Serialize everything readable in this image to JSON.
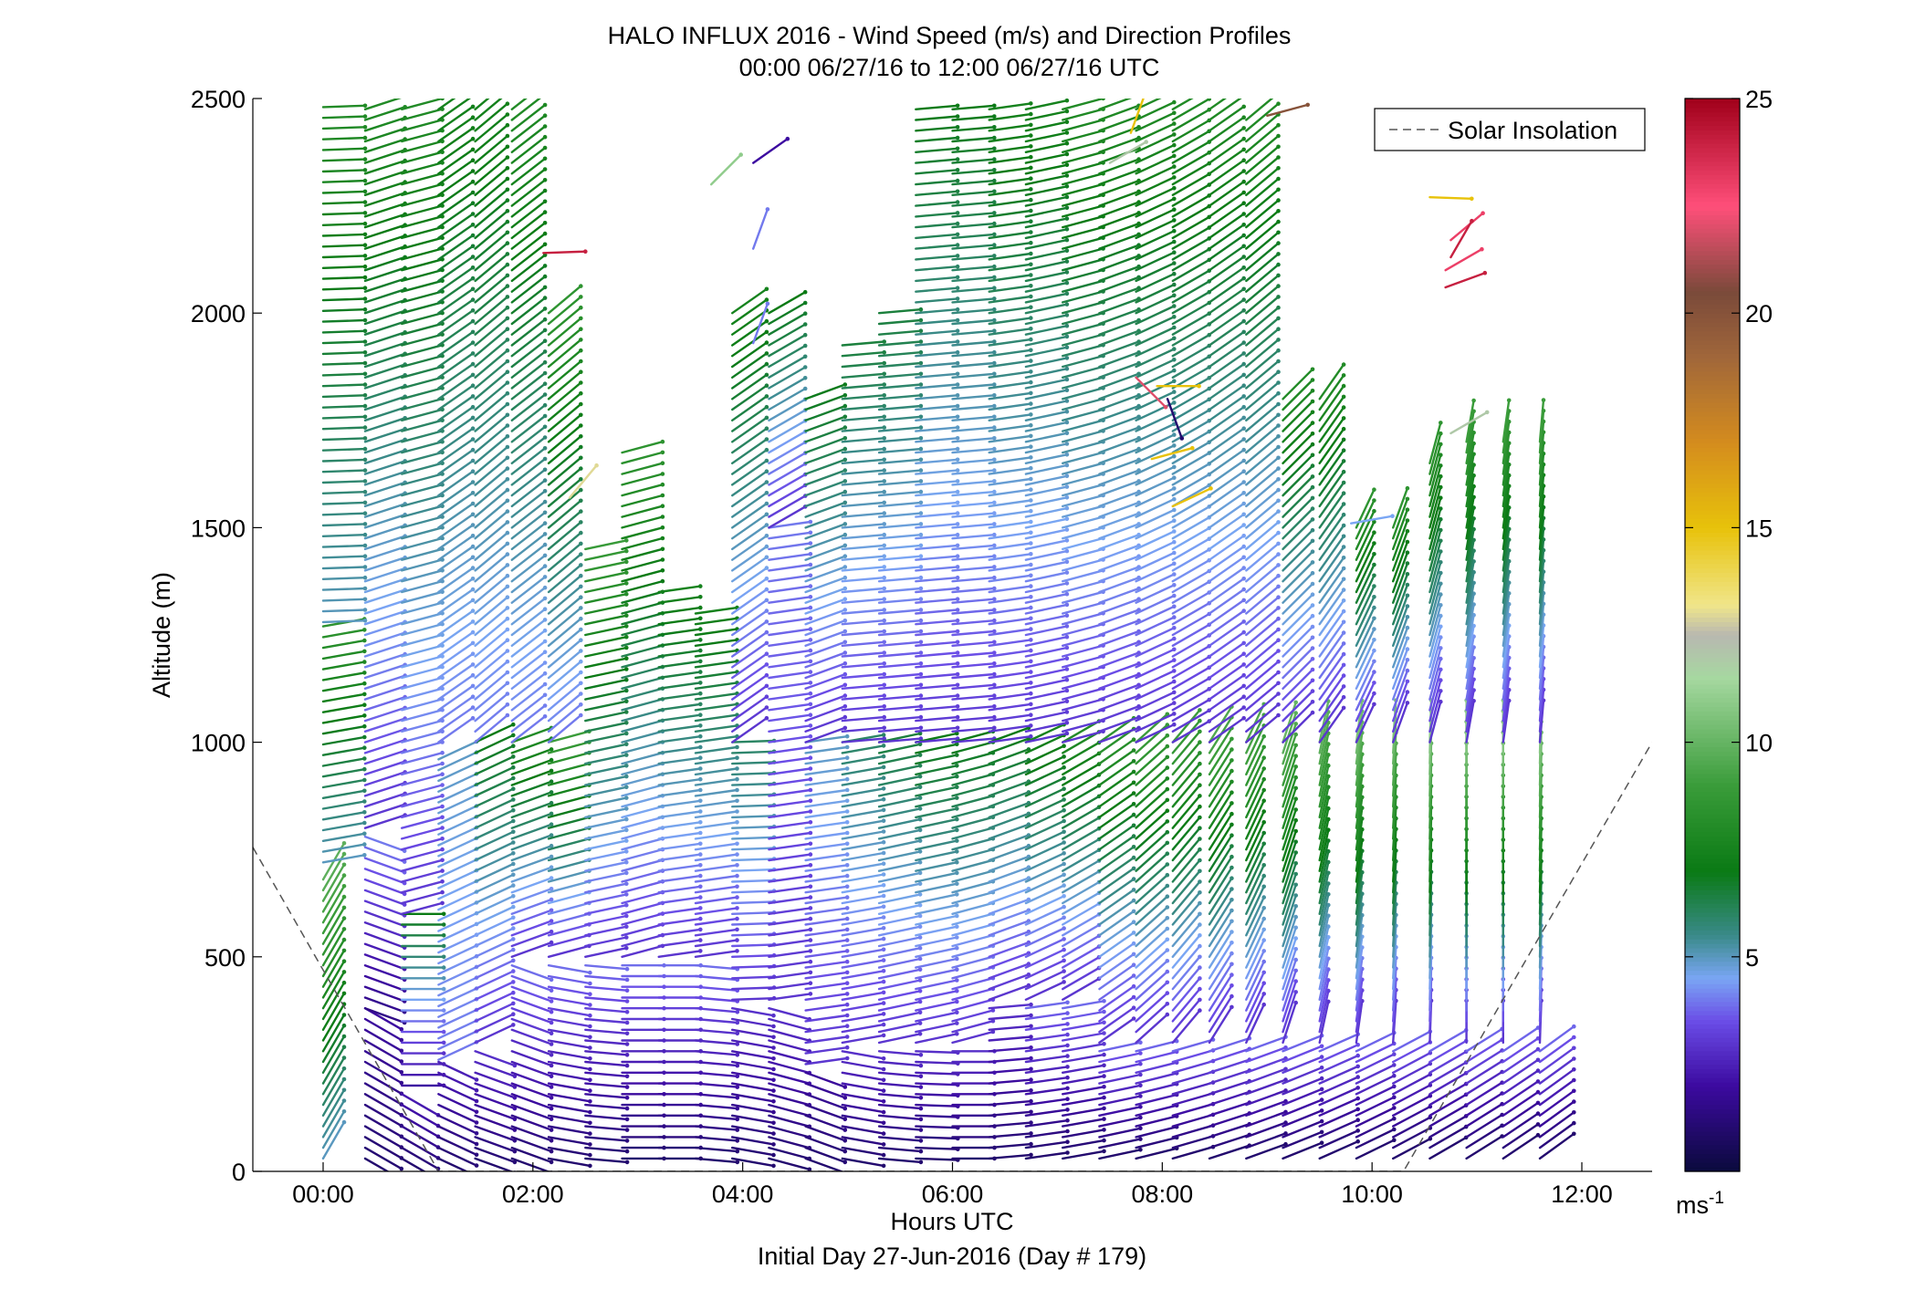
{
  "chart_data": {
    "type": "quiver",
    "title": "HALO INFLUX 2016 - Wind Speed (m/s) and Direction Profiles",
    "subtitle": "00:00 06/27/16 to 12:00 06/27/16  UTC",
    "xlabel": "Hours UTC",
    "xlabel2": "Initial Day 27-Jun-2016 (Day # 179)",
    "ylabel": "Altitude (m)",
    "xlim": [
      -0.67,
      12.67
    ],
    "ylim": [
      0,
      2500
    ],
    "x_ticks": [
      {
        "value": 0,
        "label": "00:00"
      },
      {
        "value": 2,
        "label": "02:00"
      },
      {
        "value": 4,
        "label": "04:00"
      },
      {
        "value": 6,
        "label": "06:00"
      },
      {
        "value": 8,
        "label": "08:00"
      },
      {
        "value": 10,
        "label": "10:00"
      },
      {
        "value": 12,
        "label": "12:00"
      }
    ],
    "y_ticks": [
      {
        "value": 0,
        "label": "0"
      },
      {
        "value": 500,
        "label": "500"
      },
      {
        "value": 1000,
        "label": "1000"
      },
      {
        "value": 1500,
        "label": "1500"
      },
      {
        "value": 2000,
        "label": "2000"
      },
      {
        "value": 2500,
        "label": "2500"
      }
    ],
    "legend": {
      "label": "Solar Insolation",
      "placement": "top-right"
    },
    "colorbar": {
      "min": 0,
      "max": 25,
      "ticks": [
        {
          "value": 5,
          "label": "5"
        },
        {
          "value": 10,
          "label": "10"
        },
        {
          "value": 15,
          "label": "15"
        },
        {
          "value": 20,
          "label": "20"
        },
        {
          "value": 25,
          "label": "25"
        }
      ],
      "unit_label": "ms",
      "unit_exponent": "-1",
      "stops": [
        {
          "v": 0,
          "color": "#0a0a3c"
        },
        {
          "v": 2,
          "color": "#3c0aa0"
        },
        {
          "v": 3.5,
          "color": "#6a4ce6"
        },
        {
          "v": 4.5,
          "color": "#7aa6f4"
        },
        {
          "v": 5.5,
          "color": "#3a8a8a"
        },
        {
          "v": 7,
          "color": "#0a7a14"
        },
        {
          "v": 9,
          "color": "#3a9c3a"
        },
        {
          "v": 11.5,
          "color": "#a6d8a0"
        },
        {
          "v": 12.5,
          "color": "#b8b8b0"
        },
        {
          "v": 13.2,
          "color": "#f0e68a"
        },
        {
          "v": 15,
          "color": "#e8c20a"
        },
        {
          "v": 17,
          "color": "#d48c1e"
        },
        {
          "v": 19,
          "color": "#a0663a"
        },
        {
          "v": 20.5,
          "color": "#7a4a3a"
        },
        {
          "v": 22.5,
          "color": "#ff4f7a"
        },
        {
          "v": 25,
          "color": "#a0001a"
        }
      ]
    },
    "solar_insolation_line": [
      {
        "x": -0.67,
        "y": 755
      },
      {
        "x": 1.1,
        "y": 0
      },
      {
        "x": 10.3,
        "y": 0
      },
      {
        "x": 12.67,
        "y": 1000
      }
    ],
    "profiles": [
      {
        "t": 0.0,
        "segments": [
          [
            30,
            700,
            10,
            210,
            5,
            10
          ],
          [
            720,
            1280,
            8,
            260,
            5,
            8.5
          ],
          [
            1280,
            2480,
            8,
            268,
            5,
            8
          ]
        ]
      },
      {
        "t": 0.4,
        "segments": [
          [
            30,
            380,
            4,
            300,
            1,
            2
          ],
          [
            380,
            780,
            6,
            290,
            1.5,
            4
          ],
          [
            800,
            2490,
            8,
            252,
            3,
            8
          ]
        ]
      },
      {
        "t": 0.75,
        "segments": [
          [
            30,
            200,
            6,
            300,
            1,
            2.5
          ],
          [
            200,
            600,
            8,
            270,
            2,
            7
          ],
          [
            600,
            2490,
            8,
            255,
            3,
            8
          ]
        ]
      },
      {
        "t": 1.1,
        "segments": [
          [
            30,
            260,
            6,
            295,
            1,
            2.5
          ],
          [
            260,
            980,
            7,
            245,
            4,
            5
          ],
          [
            1000,
            2490,
            8,
            235,
            4,
            7.5
          ]
        ]
      },
      {
        "t": 1.45,
        "segments": [
          [
            30,
            300,
            6,
            290,
            1,
            3
          ],
          [
            300,
            1000,
            8,
            245,
            3,
            7
          ],
          [
            1000,
            2480,
            8,
            230,
            4,
            7.5
          ]
        ]
      },
      {
        "t": 1.8,
        "segments": [
          [
            30,
            500,
            6,
            290,
            1,
            4
          ],
          [
            500,
            1000,
            8,
            250,
            3,
            8
          ],
          [
            1000,
            2480,
            8,
            232,
            4,
            8
          ]
        ]
      },
      {
        "t": 2.15,
        "segments": [
          [
            30,
            500,
            6,
            280,
            1,
            4
          ],
          [
            500,
            1000,
            8,
            255,
            3,
            9
          ],
          [
            1000,
            2000,
            8,
            230,
            4,
            8.5
          ]
        ]
      },
      {
        "t": 2.5,
        "segments": [
          [
            30,
            500,
            6,
            275,
            1,
            4
          ],
          [
            500,
            1470,
            8,
            258,
            3,
            9
          ]
        ]
      },
      {
        "t": 2.85,
        "segments": [
          [
            30,
            500,
            6,
            270,
            1,
            4
          ],
          [
            500,
            1680,
            8,
            255,
            3,
            8.5
          ]
        ]
      },
      {
        "t": 3.2,
        "segments": [
          [
            30,
            500,
            6,
            270,
            1,
            4
          ],
          [
            500,
            1360,
            8,
            262,
            3,
            7.5
          ]
        ]
      },
      {
        "t": 3.55,
        "segments": [
          [
            30,
            500,
            6,
            275,
            1,
            4
          ],
          [
            500,
            1320,
            8,
            262,
            3,
            7.5
          ]
        ]
      },
      {
        "t": 3.9,
        "segments": [
          [
            30,
            400,
            4,
            280,
            1,
            3
          ],
          [
            400,
            1000,
            8,
            268,
            3,
            6
          ],
          [
            1000,
            2000,
            8,
            235,
            3,
            7.5
          ]
        ]
      },
      {
        "t": 4.25,
        "segments": [
          [
            30,
            400,
            4,
            285,
            1,
            3
          ],
          [
            400,
            1500,
            8,
            262,
            3,
            4
          ],
          [
            1500,
            2000,
            8,
            240,
            3,
            7
          ]
        ]
      },
      {
        "t": 4.6,
        "segments": [
          [
            30,
            250,
            4,
            290,
            1,
            2
          ],
          [
            250,
            1000,
            8,
            262,
            3,
            5
          ],
          [
            1000,
            1820,
            8,
            250,
            3,
            7
          ]
        ]
      },
      {
        "t": 4.95,
        "segments": [
          [
            30,
            300,
            6,
            280,
            1,
            3
          ],
          [
            300,
            1000,
            8,
            260,
            3,
            6
          ],
          [
            1000,
            1930,
            8,
            265,
            3,
            6.5
          ]
        ]
      },
      {
        "t": 5.3,
        "segments": [
          [
            30,
            300,
            6,
            275,
            1,
            3
          ],
          [
            300,
            1000,
            8,
            258,
            3,
            6.5
          ],
          [
            1000,
            2000,
            8,
            265,
            3,
            6.5
          ]
        ]
      },
      {
        "t": 5.65,
        "segments": [
          [
            30,
            300,
            6,
            272,
            1,
            3
          ],
          [
            300,
            1000,
            8,
            258,
            3,
            7
          ],
          [
            1000,
            2490,
            8,
            265,
            3,
            7
          ]
        ]
      },
      {
        "t": 6.0,
        "segments": [
          [
            30,
            300,
            6,
            270,
            1,
            3
          ],
          [
            300,
            1000,
            8,
            255,
            3,
            7
          ],
          [
            1000,
            2490,
            8,
            265,
            3,
            7
          ]
        ]
      },
      {
        "t": 6.35,
        "segments": [
          [
            30,
            400,
            6,
            265,
            1,
            3
          ],
          [
            400,
            1000,
            8,
            250,
            3,
            7
          ],
          [
            1000,
            2490,
            8,
            262,
            3,
            7.5
          ]
        ]
      },
      {
        "t": 6.7,
        "segments": [
          [
            30,
            400,
            6,
            262,
            1,
            4
          ],
          [
            400,
            1000,
            8,
            245,
            3,
            7.5
          ],
          [
            1000,
            2490,
            8,
            258,
            3,
            7.5
          ]
        ]
      },
      {
        "t": 7.05,
        "segments": [
          [
            30,
            400,
            6,
            260,
            1,
            4
          ],
          [
            400,
            1000,
            8,
            240,
            3,
            8
          ],
          [
            1000,
            2490,
            8,
            255,
            3,
            8
          ]
        ]
      },
      {
        "t": 7.4,
        "segments": [
          [
            30,
            300,
            6,
            258,
            1,
            4
          ],
          [
            300,
            1000,
            8,
            235,
            3,
            8.5
          ],
          [
            1000,
            2490,
            8,
            250,
            3,
            8
          ]
        ]
      },
      {
        "t": 7.75,
        "segments": [
          [
            30,
            300,
            6,
            256,
            1,
            4
          ],
          [
            300,
            1000,
            8,
            228,
            3,
            9
          ],
          [
            1000,
            2490,
            8,
            245,
            3,
            8
          ]
        ]
      },
      {
        "t": 8.1,
        "segments": [
          [
            30,
            300,
            6,
            254,
            1,
            4
          ],
          [
            300,
            1000,
            8,
            220,
            3,
            9
          ],
          [
            1000,
            2490,
            8,
            240,
            3,
            8
          ]
        ]
      },
      {
        "t": 8.45,
        "segments": [
          [
            30,
            300,
            6,
            252,
            1,
            4
          ],
          [
            300,
            1000,
            8,
            212,
            3,
            9.5
          ],
          [
            1000,
            2490,
            8,
            235,
            3,
            8
          ]
        ]
      },
      {
        "t": 8.8,
        "segments": [
          [
            30,
            300,
            6,
            250,
            1,
            4
          ],
          [
            300,
            1000,
            8,
            205,
            3,
            9.5
          ],
          [
            1000,
            2450,
            8,
            230,
            3,
            8
          ]
        ]
      },
      {
        "t": 9.15,
        "segments": [
          [
            30,
            300,
            6,
            248,
            1,
            4
          ],
          [
            300,
            1000,
            8,
            198,
            3,
            10
          ],
          [
            1000,
            1800,
            8,
            225,
            3,
            8
          ]
        ]
      },
      {
        "t": 9.5,
        "segments": [
          [
            30,
            300,
            6,
            246,
            1,
            4
          ],
          [
            300,
            1000,
            8,
            192,
            3,
            10
          ],
          [
            1000,
            1800,
            8,
            215,
            3,
            8
          ]
        ]
      },
      {
        "t": 9.85,
        "segments": [
          [
            30,
            300,
            6,
            244,
            1,
            4
          ],
          [
            300,
            1000,
            8,
            188,
            3,
            10.5
          ],
          [
            1000,
            1500,
            8,
            205,
            3,
            8.5
          ]
        ]
      },
      {
        "t": 10.2,
        "segments": [
          [
            30,
            300,
            6,
            242,
            1,
            4
          ],
          [
            300,
            1000,
            8,
            184,
            3,
            10.5
          ],
          [
            1000,
            1500,
            8,
            200,
            3,
            8.5
          ]
        ]
      },
      {
        "t": 10.55,
        "segments": [
          [
            30,
            300,
            6,
            240,
            1,
            4
          ],
          [
            300,
            1000,
            8,
            182,
            3,
            11
          ],
          [
            1000,
            1650,
            8,
            195,
            3,
            8.5
          ]
        ]
      },
      {
        "t": 10.9,
        "segments": [
          [
            30,
            300,
            6,
            238,
            1,
            4
          ],
          [
            300,
            1000,
            8,
            180,
            3,
            11
          ],
          [
            1000,
            1700,
            8,
            190,
            3,
            9
          ]
        ]
      },
      {
        "t": 11.25,
        "segments": [
          [
            30,
            300,
            6,
            236,
            1,
            4
          ],
          [
            300,
            1000,
            8,
            180,
            3,
            11
          ],
          [
            1000,
            1700,
            8,
            188,
            3,
            9
          ]
        ]
      },
      {
        "t": 11.6,
        "segments": [
          [
            30,
            300,
            6,
            234,
            1,
            4
          ],
          [
            300,
            1000,
            8,
            182,
            3,
            11
          ],
          [
            1000,
            1700,
            8,
            185,
            3,
            9
          ]
        ]
      }
    ],
    "isolated_arrows": [
      {
        "t": 2.1,
        "z": 2140,
        "dir": 268,
        "speed": 24
      },
      {
        "t": 2.35,
        "z": 1570,
        "dir": 220,
        "speed": 13
      },
      {
        "t": 3.7,
        "z": 2300,
        "dir": 225,
        "speed": 11
      },
      {
        "t": 4.1,
        "z": 2350,
        "dir": 235,
        "speed": 2
      },
      {
        "t": 4.1,
        "z": 2150,
        "dir": 200,
        "speed": 4
      },
      {
        "t": 4.1,
        "z": 1930,
        "dir": 200,
        "speed": 4
      },
      {
        "t": 7.95,
        "z": 1830,
        "dir": 270,
        "speed": 15
      },
      {
        "t": 8.05,
        "z": 1800,
        "dir": 340,
        "speed": 1
      },
      {
        "t": 7.75,
        "z": 1850,
        "dir": 315,
        "speed": 22
      },
      {
        "t": 7.9,
        "z": 1660,
        "dir": 255,
        "speed": 15
      },
      {
        "t": 8.1,
        "z": 1550,
        "dir": 245,
        "speed": 15
      },
      {
        "t": 7.5,
        "z": 2350,
        "dir": 240,
        "speed": 12
      },
      {
        "t": 7.7,
        "z": 2420,
        "dir": 200,
        "speed": 15
      },
      {
        "t": 9.0,
        "z": 2460,
        "dir": 255,
        "speed": 20
      },
      {
        "t": 10.55,
        "z": 2270,
        "dir": 272,
        "speed": 15
      },
      {
        "t": 10.75,
        "z": 2170,
        "dir": 230,
        "speed": 23
      },
      {
        "t": 10.7,
        "z": 2100,
        "dir": 240,
        "speed": 23
      },
      {
        "t": 10.75,
        "z": 2130,
        "dir": 210,
        "speed": 24
      },
      {
        "t": 10.7,
        "z": 2060,
        "dir": 250,
        "speed": 24
      },
      {
        "t": 10.75,
        "z": 1720,
        "dir": 240,
        "speed": 12
      },
      {
        "t": 9.8,
        "z": 1510,
        "dir": 260,
        "speed": 4.5
      }
    ]
  }
}
